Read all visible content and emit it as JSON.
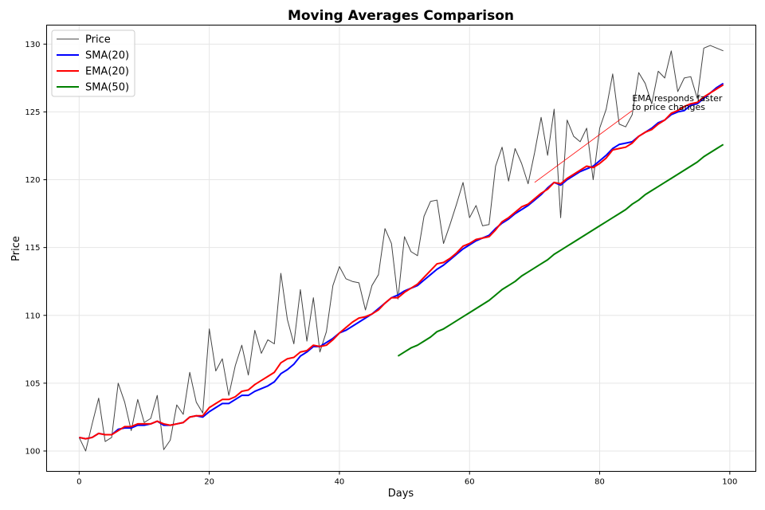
{
  "chart_data": {
    "type": "line",
    "title": "Moving Averages Comparison",
    "xlabel": "Days",
    "ylabel": "Price",
    "xlim": [
      -5,
      104
    ],
    "ylim": [
      98.5,
      131.4
    ],
    "xticks": [
      0,
      20,
      40,
      60,
      80,
      100
    ],
    "yticks": [
      100,
      105,
      110,
      115,
      120,
      125,
      130
    ],
    "grid": true,
    "legend": "top-left",
    "annotation": {
      "lines": [
        "EMA responds faster",
        "to price changes"
      ],
      "text_x": 85,
      "text_y": 125.8,
      "arrow_to_x": 70,
      "arrow_to_y": 119.8,
      "color": "#ff0000"
    },
    "series": [
      {
        "name": "Price",
        "color": "#444444",
        "width": 1,
        "start": 0,
        "values": [
          101.0,
          100.0,
          102.0,
          103.9,
          100.7,
          101.0,
          105.0,
          103.6,
          101.5,
          103.8,
          102.1,
          102.4,
          104.1,
          100.1,
          100.8,
          103.4,
          102.7,
          105.8,
          103.6,
          102.8,
          109.0,
          105.9,
          106.8,
          104.1,
          106.3,
          107.8,
          105.6,
          108.9,
          107.2,
          108.2,
          107.9,
          113.1,
          109.7,
          107.9,
          111.9,
          108.1,
          111.3,
          107.3,
          108.8,
          112.2,
          113.6,
          112.7,
          112.5,
          112.4,
          110.4,
          112.2,
          113.0,
          116.4,
          115.3,
          111.2,
          115.8,
          114.7,
          114.4,
          117.3,
          118.4,
          118.5,
          115.3,
          116.7,
          118.2,
          119.8,
          117.2,
          118.1,
          116.6,
          116.7,
          121.0,
          122.4,
          119.9,
          122.3,
          121.2,
          119.7,
          122.0,
          124.6,
          121.8,
          125.2,
          117.2,
          124.4,
          123.2,
          122.8,
          123.8,
          120.0,
          123.8,
          125.2,
          127.8,
          124.1,
          123.9,
          124.8,
          127.9,
          127.1,
          125.6,
          128.0,
          127.5,
          129.5,
          126.5,
          127.5,
          127.6,
          126.0,
          129.7,
          129.9,
          129.7,
          129.5
        ]
      },
      {
        "name": "SMA(20)",
        "color": "#0000ff",
        "width": 2,
        "start": 0,
        "values": [
          101.0,
          100.9,
          101.0,
          101.3,
          101.2,
          101.2,
          101.6,
          101.7,
          101.7,
          101.9,
          101.9,
          102.0,
          102.2,
          101.9,
          101.9,
          102.0,
          102.1,
          102.5,
          102.6,
          102.5,
          102.9,
          103.2,
          103.5,
          103.5,
          103.8,
          104.1,
          104.1,
          104.4,
          104.6,
          104.8,
          105.1,
          105.7,
          106.0,
          106.4,
          107.0,
          107.3,
          107.7,
          107.7,
          108.0,
          108.3,
          108.7,
          108.9,
          109.2,
          109.5,
          109.8,
          110.1,
          110.5,
          110.9,
          111.3,
          111.5,
          111.8,
          112.0,
          112.2,
          112.6,
          113.0,
          113.4,
          113.7,
          114.1,
          114.5,
          114.9,
          115.2,
          115.5,
          115.7,
          115.9,
          116.4,
          116.8,
          117.1,
          117.5,
          117.8,
          118.1,
          118.5,
          118.9,
          119.4,
          119.8,
          119.6,
          120.0,
          120.3,
          120.6,
          120.8,
          121.0,
          121.4,
          121.8,
          122.3,
          122.6,
          122.7,
          122.8,
          123.2,
          123.5,
          123.8,
          124.2,
          124.4,
          124.8,
          125.0,
          125.1,
          125.5,
          125.6,
          126.0,
          126.4,
          126.8,
          127.1
        ]
      },
      {
        "name": "EMA(20)",
        "color": "#ff0000",
        "width": 2,
        "start": 0,
        "values": [
          101.0,
          100.9,
          101.0,
          101.3,
          101.2,
          101.2,
          101.5,
          101.8,
          101.8,
          102.0,
          102.0,
          102.0,
          102.2,
          102.0,
          101.9,
          102.0,
          102.1,
          102.5,
          102.6,
          102.6,
          103.2,
          103.5,
          103.8,
          103.8,
          104.0,
          104.4,
          104.5,
          104.9,
          105.2,
          105.5,
          105.8,
          106.5,
          106.8,
          106.9,
          107.3,
          107.4,
          107.8,
          107.7,
          107.8,
          108.2,
          108.7,
          109.1,
          109.5,
          109.8,
          109.9,
          110.1,
          110.4,
          110.9,
          111.3,
          111.3,
          111.7,
          112.0,
          112.3,
          112.8,
          113.3,
          113.8,
          113.9,
          114.2,
          114.6,
          115.1,
          115.3,
          115.6,
          115.7,
          115.8,
          116.3,
          116.9,
          117.2,
          117.6,
          118.0,
          118.2,
          118.6,
          119.0,
          119.3,
          119.8,
          119.7,
          120.1,
          120.4,
          120.7,
          121.0,
          120.9,
          121.2,
          121.6,
          122.2,
          122.3,
          122.4,
          122.7,
          123.2,
          123.5,
          123.7,
          124.1,
          124.4,
          124.9,
          125.1,
          125.4,
          125.6,
          125.7,
          126.1,
          126.4,
          126.7,
          127.0
        ]
      },
      {
        "name": "SMA(50)",
        "color": "#008000",
        "width": 2,
        "start": 49,
        "values": [
          107.0,
          107.3,
          107.6,
          107.8,
          108.1,
          108.4,
          108.8,
          109.0,
          109.3,
          109.6,
          109.9,
          110.2,
          110.5,
          110.8,
          111.1,
          111.5,
          111.9,
          112.2,
          112.5,
          112.9,
          113.2,
          113.5,
          113.8,
          114.1,
          114.5,
          114.8,
          115.1,
          115.4,
          115.7,
          116.0,
          116.3,
          116.6,
          116.9,
          117.2,
          117.5,
          117.8,
          118.2,
          118.5,
          118.9,
          119.2,
          119.5,
          119.8,
          120.1,
          120.4,
          120.7,
          121.0,
          121.3,
          121.7,
          122.0,
          122.3,
          122.6
        ]
      }
    ]
  }
}
